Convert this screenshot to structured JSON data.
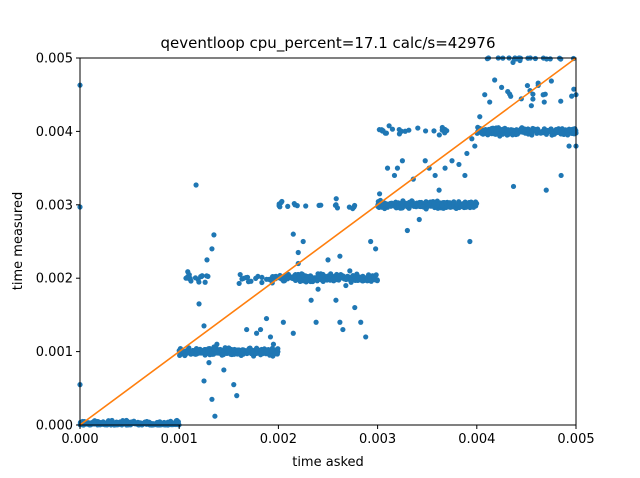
{
  "chart_data": {
    "type": "scatter",
    "title": "qeventloop cpu_percent=17.1 calc/s=42976",
    "xlabel": "time asked",
    "ylabel": "time measured",
    "xlim": [
      0,
      0.005
    ],
    "ylim": [
      0,
      0.005
    ],
    "x_ticks": [
      "0.000",
      "0.001",
      "0.002",
      "0.003",
      "0.004",
      "0.005"
    ],
    "y_ticks": [
      "0.000",
      "0.001",
      "0.002",
      "0.003",
      "0.004",
      "0.005"
    ],
    "grid": false,
    "scatter_color": "#1f77b4",
    "line_color": "#ff7f0e",
    "reference_line": {
      "x": [
        0,
        0.005
      ],
      "y": [
        0,
        0.005
      ]
    },
    "point_clusters": [
      {
        "x_range": [
          0.0,
          0.001
        ],
        "y_center": 2e-05,
        "y_spread": 3e-05,
        "count": 220
      },
      {
        "x_range": [
          0.001,
          0.002
        ],
        "y_center": 0.001,
        "y_spread": 4e-05,
        "count": 240
      },
      {
        "x_range": [
          0.002,
          0.003
        ],
        "y_center": 0.002,
        "y_spread": 4e-05,
        "count": 240
      },
      {
        "x_range": [
          0.003,
          0.004
        ],
        "y_center": 0.003,
        "y_spread": 4e-05,
        "count": 240
      },
      {
        "x_range": [
          0.004,
          0.005
        ],
        "y_center": 0.004,
        "y_spread": 4e-05,
        "count": 220
      },
      {
        "x_range": [
          0.001,
          0.0013
        ],
        "y_center": 0.002,
        "y_spread": 5e-05,
        "count": 18
      },
      {
        "x_range": [
          0.0016,
          0.002
        ],
        "y_center": 0.002,
        "y_spread": 5e-05,
        "count": 22
      },
      {
        "x_range": [
          0.002,
          0.0028
        ],
        "y_center": 0.003,
        "y_spread": 5e-05,
        "count": 20
      },
      {
        "x_range": [
          0.003,
          0.0037
        ],
        "y_center": 0.004,
        "y_spread": 5e-05,
        "count": 22
      },
      {
        "x_range": [
          0.0041,
          0.005
        ],
        "y_center": 0.005,
        "y_spread": 4e-05,
        "count": 22
      },
      {
        "x_range": [
          0.0043,
          0.005
        ],
        "y_center": 0.0045,
        "y_spread": 0.00015,
        "count": 16
      }
    ],
    "outliers": [
      [
        0.0,
        0.00463
      ],
      [
        0.0,
        0.00297
      ],
      [
        0.0,
        0.00055
      ],
      [
        0.00117,
        0.00327
      ],
      [
        0.00135,
        0.00259
      ],
      [
        0.00133,
        0.0024
      ],
      [
        0.00135,
        0.00103
      ],
      [
        0.00128,
        0.00225
      ],
      [
        0.0012,
        0.00165
      ],
      [
        0.00125,
        0.00135
      ],
      [
        0.0013,
        0.00085
      ],
      [
        0.00138,
        0.0011
      ],
      [
        0.00145,
        0.00075
      ],
      [
        0.0015,
        0.00105
      ],
      [
        0.00125,
        0.0006
      ],
      [
        0.00136,
        0.00012
      ],
      [
        0.00133,
        0.00035
      ],
      [
        0.00155,
        0.00055
      ],
      [
        0.00158,
        0.0004
      ],
      [
        0.00168,
        0.0013
      ],
      [
        0.00178,
        0.00125
      ],
      [
        0.00182,
        0.0013
      ],
      [
        0.00188,
        0.00145
      ],
      [
        0.00192,
        0.0012
      ],
      [
        0.00195,
        0.0011
      ],
      [
        0.00205,
        0.0014
      ],
      [
        0.00215,
        0.00125
      ],
      [
        0.0022,
        0.00235
      ],
      [
        0.00215,
        0.0026
      ],
      [
        0.00225,
        0.0025
      ],
      [
        0.0022,
        0.0022
      ],
      [
        0.00233,
        0.0017
      ],
      [
        0.00238,
        0.0014
      ],
      [
        0.0024,
        0.00185
      ],
      [
        0.00245,
        0.00205
      ],
      [
        0.0025,
        0.00225
      ],
      [
        0.00262,
        0.0023
      ],
      [
        0.00268,
        0.0019
      ],
      [
        0.00258,
        0.0017
      ],
      [
        0.00262,
        0.0014
      ],
      [
        0.00265,
        0.0013
      ],
      [
        0.00272,
        0.0021
      ],
      [
        0.00277,
        0.0016
      ],
      [
        0.00283,
        0.0014
      ],
      [
        0.00288,
        0.0012
      ],
      [
        0.00293,
        0.0025
      ],
      [
        0.00298,
        0.0024
      ],
      [
        0.00302,
        0.00315
      ],
      [
        0.0031,
        0.0035
      ],
      [
        0.00317,
        0.0034
      ],
      [
        0.0032,
        0.0035
      ],
      [
        0.00325,
        0.0036
      ],
      [
        0.0033,
        0.00265
      ],
      [
        0.00336,
        0.00335
      ],
      [
        0.00342,
        0.0028
      ],
      [
        0.00348,
        0.0036
      ],
      [
        0.00352,
        0.0035
      ],
      [
        0.00358,
        0.0034
      ],
      [
        0.00362,
        0.0032
      ],
      [
        0.00368,
        0.0035
      ],
      [
        0.00375,
        0.0036
      ],
      [
        0.00382,
        0.00355
      ],
      [
        0.00388,
        0.0034
      ],
      [
        0.00393,
        0.0025
      ],
      [
        0.0039,
        0.0037
      ],
      [
        0.00395,
        0.0039
      ],
      [
        0.00398,
        0.0038
      ],
      [
        0.00403,
        0.0042
      ],
      [
        0.00408,
        0.0045
      ],
      [
        0.00413,
        0.0044
      ],
      [
        0.00418,
        0.0047
      ],
      [
        0.00425,
        0.0046
      ],
      [
        0.00437,
        0.00325
      ],
      [
        0.00455,
        0.00435
      ],
      [
        0.0046,
        0.004
      ],
      [
        0.00468,
        0.0044
      ],
      [
        0.0047,
        0.0032
      ],
      [
        0.00485,
        0.0034
      ],
      [
        0.00493,
        0.0038
      ],
      [
        0.005,
        0.0045
      ],
      [
        0.005,
        0.0038
      ]
    ]
  }
}
